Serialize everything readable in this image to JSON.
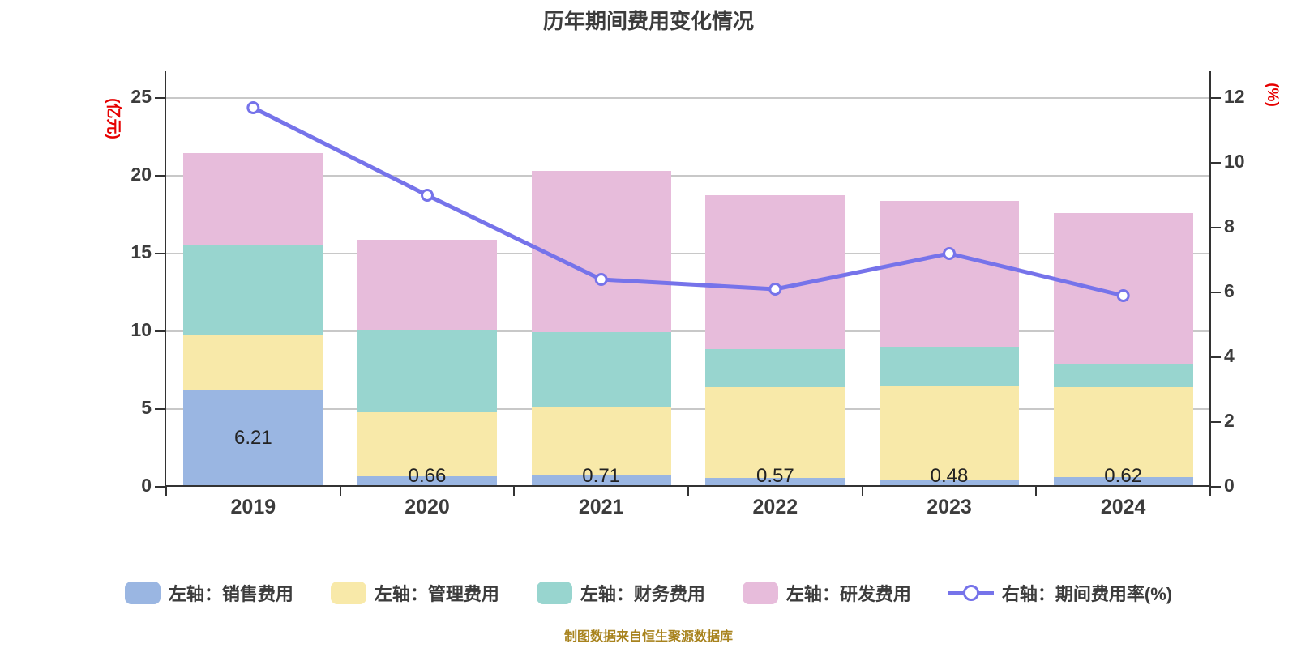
{
  "title": "历年期间费用变化情况",
  "footer": "制图数据来自恒生聚源数据库",
  "left_axis": {
    "unit": "(亿元)",
    "ticks": [
      0,
      5,
      10,
      15,
      20,
      25
    ],
    "max": 25
  },
  "right_axis": {
    "unit": "(%)",
    "ticks": [
      0,
      2,
      4,
      6,
      8,
      10,
      12
    ],
    "max": 12
  },
  "colors": {
    "sales": "#9ab6e2",
    "admin": "#f8e9a9",
    "finance": "#98d5cf",
    "rd": "#e7bcdb",
    "rate_line": "#7673ea",
    "grid": "#c8c8c8",
    "axis": "#333333",
    "unit_label": "#e60000",
    "footer_text": "#a8831e"
  },
  "chart_data": {
    "type": "stacked-bar-with-line",
    "categories": [
      "2019",
      "2020",
      "2021",
      "2022",
      "2023",
      "2024"
    ],
    "series": [
      {
        "key": "sales",
        "name": "左轴：销售费用",
        "axis": "left",
        "type": "bar",
        "values": [
          6.21,
          0.66,
          0.71,
          0.57,
          0.48,
          0.62
        ]
      },
      {
        "key": "admin",
        "name": "左轴：管理费用",
        "axis": "left",
        "type": "bar",
        "values": [
          3.54,
          4.15,
          4.46,
          5.86,
          6.0,
          5.81
        ]
      },
      {
        "key": "finance",
        "name": "左轴：财务费用",
        "axis": "left",
        "type": "bar",
        "values": [
          5.76,
          5.28,
          4.76,
          2.4,
          2.51,
          1.51
        ]
      },
      {
        "key": "rd",
        "name": "左轴：研发费用",
        "axis": "left",
        "type": "bar",
        "values": [
          5.96,
          5.82,
          10.37,
          9.92,
          9.41,
          9.66
        ]
      },
      {
        "key": "rate",
        "name": "右轴：期间费用率(%)",
        "axis": "right",
        "type": "line",
        "values": [
          11.7,
          9.0,
          6.4,
          6.1,
          7.2,
          5.9
        ]
      }
    ],
    "bar_value_labels": [
      "6.21",
      "0.66",
      "0.71",
      "0.57",
      "0.48",
      "0.62"
    ],
    "xlabel": "",
    "ylabel_left": "(亿元)",
    "ylabel_right": "(%)",
    "left_range": [
      0,
      25
    ],
    "right_range": [
      0,
      12
    ],
    "grid": true,
    "legend_position": "bottom"
  },
  "legend": {
    "items": [
      {
        "key": "sales",
        "icon": "swatch",
        "color": "#9ab6e2",
        "label": "左轴：销售费用"
      },
      {
        "key": "admin",
        "icon": "swatch",
        "color": "#f8e9a9",
        "label": "左轴：管理费用"
      },
      {
        "key": "finance",
        "icon": "swatch",
        "color": "#98d5cf",
        "label": "左轴：财务费用"
      },
      {
        "key": "rd",
        "icon": "swatch",
        "color": "#e7bcdb",
        "label": "左轴：研发费用"
      },
      {
        "key": "rate",
        "icon": "line-marker",
        "color": "#7673ea",
        "label": "右轴：期间费用率(%)"
      }
    ]
  }
}
